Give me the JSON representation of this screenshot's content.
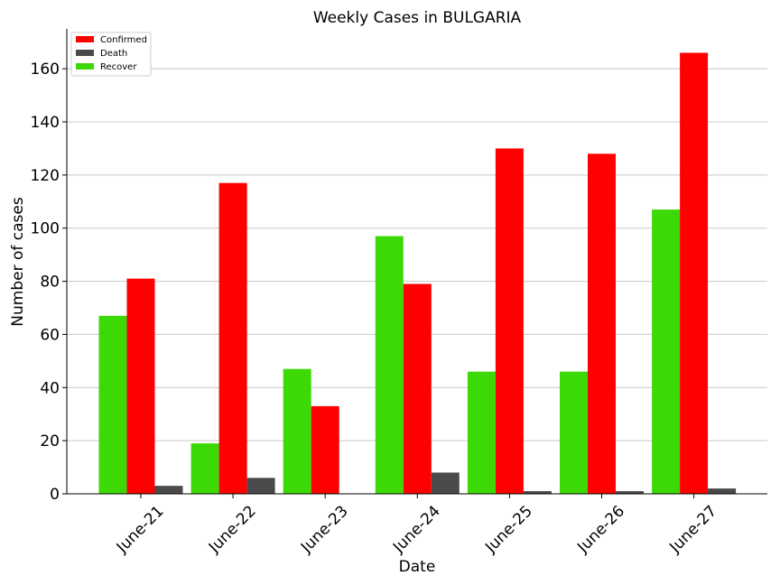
{
  "chart_data": {
    "type": "bar",
    "title": "Weekly Cases in BULGARIA",
    "xlabel": "Date",
    "ylabel": "Number of cases",
    "categories": [
      "June-21",
      "June-22",
      "June-23",
      "June-24",
      "June-25",
      "June-26",
      "June-27"
    ],
    "series": [
      {
        "name": "Recover",
        "color": "#3dd906",
        "values": [
          67,
          19,
          47,
          97,
          46,
          46,
          107
        ]
      },
      {
        "name": "Confirmed",
        "color": "#ff0000",
        "values": [
          81,
          117,
          33,
          79,
          130,
          128,
          166
        ]
      },
      {
        "name": "Death",
        "color": "#4a4a4a",
        "values": [
          3,
          6,
          0,
          8,
          1,
          1,
          2
        ]
      }
    ],
    "legend_order": [
      "Confirmed",
      "Death",
      "Recover"
    ],
    "legend_position": "top-left",
    "ylim": [
      0,
      175
    ],
    "yticks": [
      0,
      20,
      40,
      60,
      80,
      100,
      120,
      140,
      160
    ],
    "grid": "horizontal"
  }
}
